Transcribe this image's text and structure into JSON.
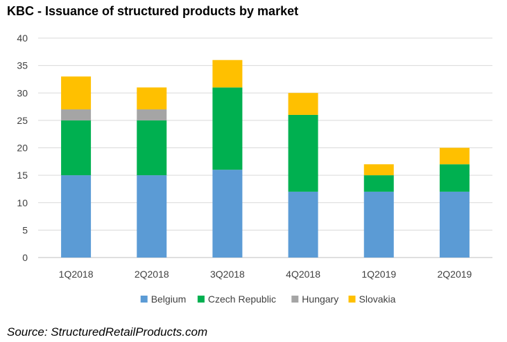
{
  "chart_data": {
    "type": "bar",
    "stacked": true,
    "title": "KBC - Issuance of structured products by market",
    "categories": [
      "1Q2018",
      "2Q2018",
      "3Q2018",
      "4Q2018",
      "1Q2019",
      "2Q2019"
    ],
    "series": [
      {
        "name": "Belgium",
        "color": "#5b9bd5",
        "values": [
          15,
          15,
          16,
          12,
          12,
          12
        ]
      },
      {
        "name": "Czech Republic",
        "color": "#00b050",
        "values": [
          10,
          10,
          15,
          14,
          3,
          5
        ]
      },
      {
        "name": "Hungary",
        "color": "#a5a5a5",
        "values": [
          2,
          2,
          0,
          0,
          0,
          0
        ]
      },
      {
        "name": "Slovakia",
        "color": "#ffc000",
        "values": [
          6,
          4,
          5,
          4,
          2,
          3
        ]
      }
    ],
    "ylim": [
      0,
      40
    ],
    "yticks": [
      0,
      5,
      10,
      15,
      20,
      25,
      30,
      35,
      40
    ],
    "grid": true,
    "legend": "bottom",
    "source": "Source: StructuredRetailProducts.com"
  }
}
